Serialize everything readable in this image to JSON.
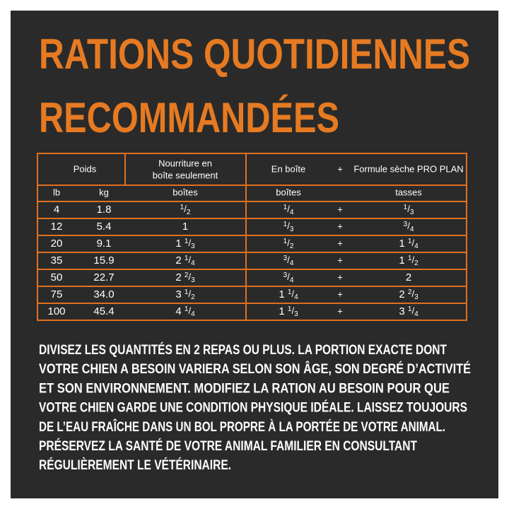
{
  "title": {
    "lines": [
      "RATIONS QUOTIDIENNES",
      "RECOMMANDÉES"
    ]
  },
  "table": {
    "header": [
      "Poids",
      "Nourriture en",
      "boîte seulement",
      "En boîte",
      "+",
      "Formule sèche PRO PLAN"
    ],
    "subheader": [
      "lb",
      "kg",
      "boîtes",
      "boîtes",
      "tasses"
    ],
    "rows": [
      [
        "4",
        "1.8",
        "1/2",
        "1/4",
        "+",
        "1/3"
      ],
      [
        "12",
        "5.4",
        "1",
        "1/3",
        "+",
        "3/4"
      ],
      [
        "20",
        "9.1",
        "1 1/3",
        "1/2",
        "+",
        "1 1/4"
      ],
      [
        "35",
        "15.9",
        "2 1/4",
        "3/4",
        "+",
        "1 1/2"
      ],
      [
        "50",
        "22.7",
        "2 2/3",
        "3/4",
        "+",
        "2"
      ],
      [
        "75",
        "34.0",
        "3 1/2",
        "1 1/4",
        "+",
        "2 2/3"
      ],
      [
        "100",
        "45.4",
        "4 1/4",
        "1 1/3",
        "+",
        "3 1/4"
      ]
    ]
  },
  "note": {
    "lines": [
      "DIVISEZ LES QUANTITÉS EN 2 REPAS OU PLUS. LA PORTION EXACTE DONT",
      "VOTRE CHIEN A BESOIN VARIERA SELON SON ÂGE, SON DEGRÉ D’ACTIVITÉ",
      "ET SON ENVIRONNEMENT. MODIFIEZ LA RATION AU BESOIN POUR QUE",
      "VOTRE CHIEN GARDE UNE CONDITION PHYSIQUE IDÉALE. LAISSEZ TOUJOURS",
      "DE L’EAU FRAÎCHE DANS UN BOL PROPRE À LA PORTÉE DE VOTRE ANIMAL.",
      "PRÉSERVEZ LA SANTÉ DE VOTRE ANIMAL FAMILIER EN CONSULTANT",
      "RÉGULIÈREMENT LE VÉTÉRINAIRE."
    ]
  }
}
